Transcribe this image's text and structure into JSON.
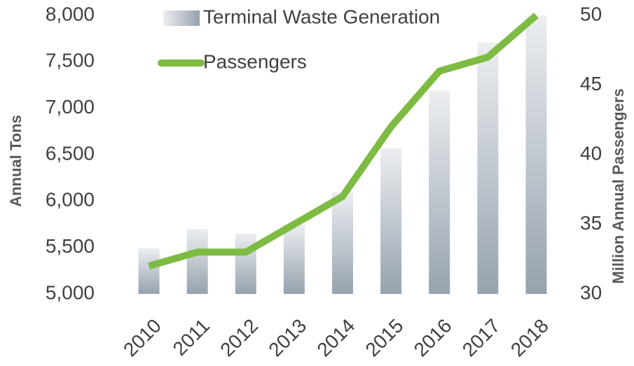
{
  "chart_data": {
    "type": "bar-line",
    "categories": [
      "2010",
      "2011",
      "2012",
      "2013",
      "2014",
      "2015",
      "2016",
      "2017",
      "2018"
    ],
    "series": [
      {
        "name": "Terminal Waste Generation",
        "type": "bar",
        "color": "#aab2bd",
        "values": [
          5490,
          5700,
          5650,
          5750,
          6100,
          6570,
          7190,
          7710,
          8000
        ]
      },
      {
        "name": "Passengers",
        "type": "line",
        "axis": "y2",
        "color": "#7dbb42",
        "values": [
          32,
          33,
          33,
          35,
          37,
          42,
          46,
          47,
          50
        ]
      }
    ],
    "ylabel": "Annual  Tons",
    "y2label": "Million Annual Passengers",
    "ylim": [
      5000,
      8000
    ],
    "yticks": [
      {
        "value": 5000,
        "label": "5,000"
      },
      {
        "value": 5500,
        "label": "5,500"
      },
      {
        "value": 6000,
        "label": "6,000"
      },
      {
        "value": 6500,
        "label": "6,500"
      },
      {
        "value": 7000,
        "label": "7,000"
      },
      {
        "value": 7500,
        "label": "7,500"
      },
      {
        "value": 8000,
        "label": "8,000"
      }
    ],
    "y2lim": [
      30,
      50
    ],
    "y2ticks": [
      30,
      35,
      40,
      45,
      50
    ],
    "legend": "top-left",
    "grid": false
  }
}
